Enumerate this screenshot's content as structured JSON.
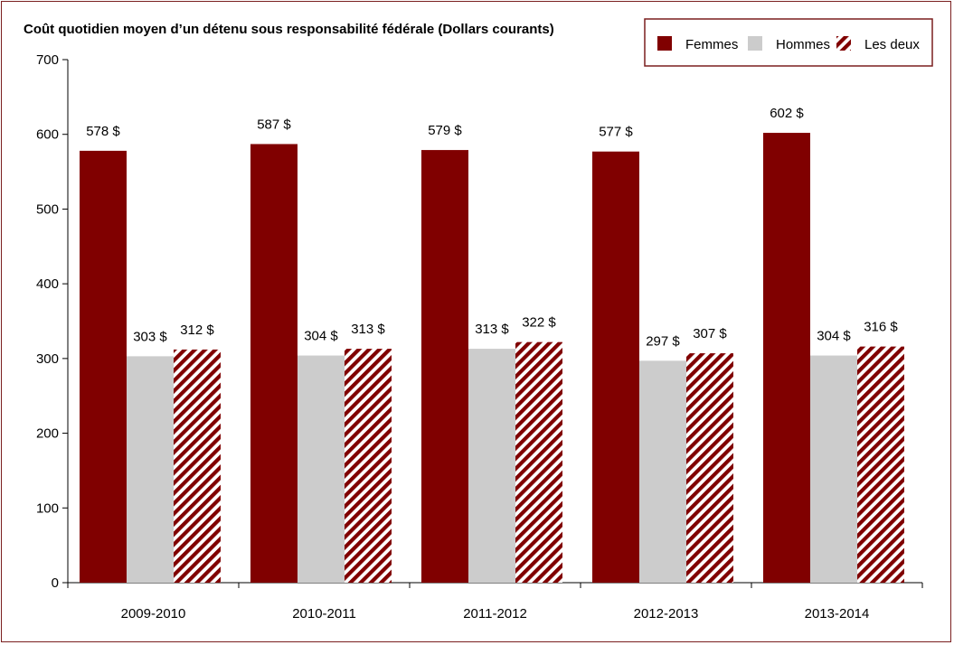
{
  "chart_data": {
    "type": "bar",
    "title": "Coût quotidien moyen d’un détenu sous responsabilité fédérale (Dollars courants)",
    "xlabel": "",
    "ylabel": "",
    "categories": [
      "2009-2010",
      "2010-2011",
      "2011-2012",
      "2012-2013",
      "2013-2014"
    ],
    "series": [
      {
        "name": "Femmes",
        "values": [
          578,
          587,
          579,
          577,
          602
        ],
        "labels": [
          "578 $",
          "587 $",
          "579 $",
          "577 $",
          "602 $"
        ],
        "color": "#800000",
        "pattern": "solid"
      },
      {
        "name": "Hommes",
        "values": [
          303,
          304,
          313,
          297,
          304
        ],
        "labels": [
          "303 $",
          "304 $",
          "313 $",
          "297 $",
          "304 $"
        ],
        "color": "#cccccc",
        "pattern": "solid"
      },
      {
        "name": "Les deux",
        "values": [
          312,
          313,
          322,
          307,
          316
        ],
        "labels": [
          "312 $",
          "313 $",
          "322 $",
          "307 $",
          "316 $"
        ],
        "color": "#800000",
        "pattern": "diagonal-stripes"
      }
    ],
    "ylim": [
      0,
      700
    ],
    "yticks": [
      0,
      100,
      200,
      300,
      400,
      500,
      600,
      700
    ],
    "grid": false,
    "legend_position": "top-right"
  }
}
